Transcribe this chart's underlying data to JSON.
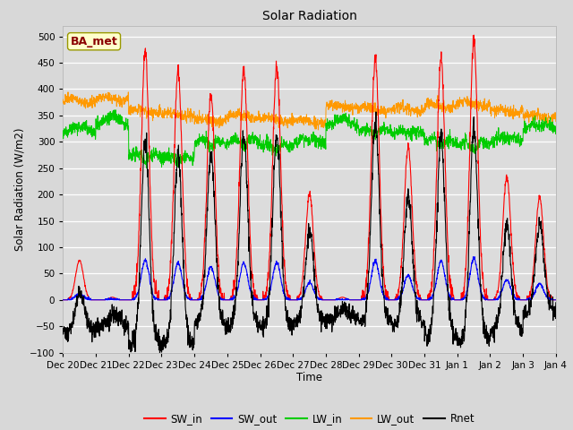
{
  "title": "Solar Radiation",
  "xlabel": "Time",
  "ylabel": "Solar Radiation (W/m2)",
  "ylim": [
    -100,
    520
  ],
  "yticks": [
    -100,
    -50,
    0,
    50,
    100,
    150,
    200,
    250,
    300,
    350,
    400,
    450,
    500
  ],
  "bg_color": "#dcdcdc",
  "fig_color": "#d8d8d8",
  "annotation_text": "BA_met",
  "annotation_box_color": "#ffffcc",
  "annotation_text_color": "#8b0000",
  "series_colors": {
    "SW_in": "#ff0000",
    "SW_out": "#0000ff",
    "LW_in": "#00cc00",
    "LW_out": "#ff9900",
    "Rnet": "#000000"
  },
  "n_days": 15,
  "points_per_day": 144,
  "tick_labels": [
    "Dec 20",
    "Dec 21",
    "Dec 22",
    "Dec 23",
    "Dec 24",
    "Dec 25",
    "Dec 26",
    "Dec 27",
    "Dec 28",
    "Dec 29",
    "Dec 30",
    "Dec 31",
    "Jan 1",
    "Jan 2",
    "Jan 3",
    "Jan 4"
  ],
  "legend_labels": [
    "SW_in",
    "SW_out",
    "LW_in",
    "LW_out",
    "Rnet"
  ],
  "legend_colors": [
    "#ff0000",
    "#0000ff",
    "#00cc00",
    "#ff9900",
    "#000000"
  ]
}
